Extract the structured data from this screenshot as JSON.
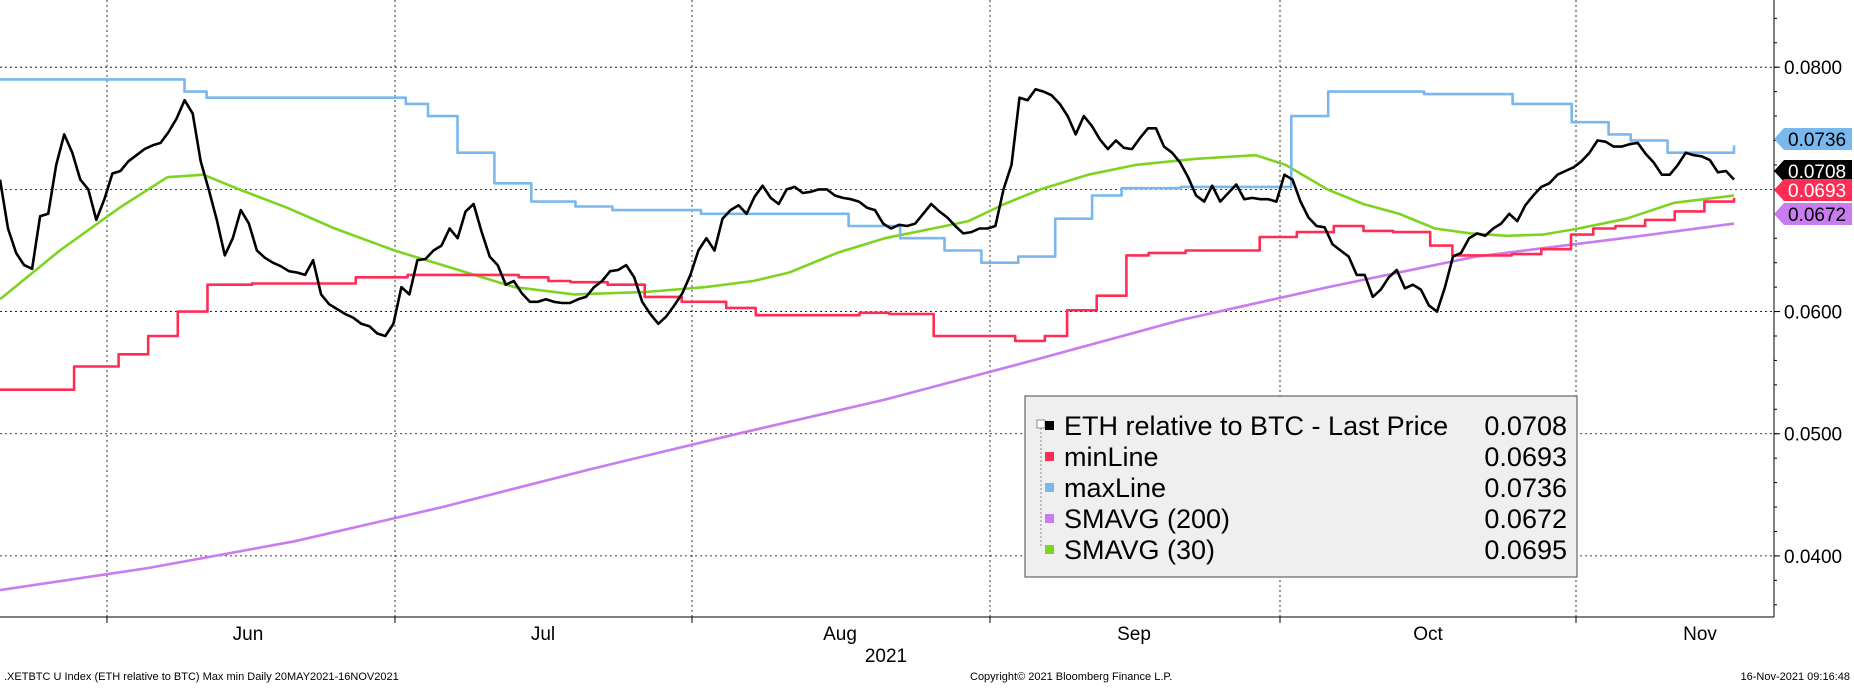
{
  "chart_data": {
    "type": "line",
    "source": "Copyright© 2021 Bloomberg Finance L.P.",
    "footer_left": ".XETBTC U Index (ETH relative to BTC) Max min  Daily 20MAY2021-16NOV2021",
    "footer_right": "16-Nov-2021 09:16:48",
    "x_range": [
      "2021-05-20",
      "2021-11-16"
    ],
    "ylim": [
      0.035,
      0.0855
    ],
    "y_ticks": [
      "0.0800",
      "0.0600",
      "0.0500",
      "0.0400"
    ],
    "x_ticks": [
      "Jun",
      "Jul",
      "Aug",
      "Sep",
      "Oct",
      "Nov"
    ],
    "x_year_label": "2021",
    "grid": true,
    "legend_position": "bottom-right",
    "series": [
      {
        "name": "ETH relative to BTC - Last Price",
        "color": "#000000",
        "last_value": "0.0708",
        "values": [
          0.0708,
          0.0668,
          0.0648,
          0.0638,
          0.0635,
          0.0678,
          0.068,
          0.072,
          0.0745,
          0.073,
          0.0708,
          0.07,
          0.0675,
          0.0692,
          0.0713,
          0.0715,
          0.0723,
          0.0728,
          0.0733,
          0.0736,
          0.0738,
          0.0747,
          0.0758,
          0.0773,
          0.0762,
          0.0723,
          0.07,
          0.0675,
          0.0646,
          0.066,
          0.0683,
          0.0672,
          0.065,
          0.0644,
          0.064,
          0.0637,
          0.0633,
          0.0632,
          0.063,
          0.0642,
          0.0614,
          0.0606,
          0.0602,
          0.0598,
          0.0595,
          0.059,
          0.0588,
          0.0582,
          0.058,
          0.059,
          0.062,
          0.0614,
          0.0642,
          0.0643,
          0.065,
          0.0654,
          0.0668,
          0.066,
          0.0682,
          0.0688,
          0.0665,
          0.0645,
          0.0638,
          0.0622,
          0.0625,
          0.0615,
          0.0608,
          0.0608,
          0.061,
          0.0608,
          0.0607,
          0.0607,
          0.061,
          0.0612,
          0.062,
          0.0625,
          0.0633,
          0.0634,
          0.0638,
          0.0628,
          0.0608,
          0.0598,
          0.059,
          0.0596,
          0.0605,
          0.0615,
          0.063,
          0.065,
          0.066,
          0.065,
          0.0676,
          0.0683,
          0.0687,
          0.068,
          0.0694,
          0.0703,
          0.0693,
          0.0688,
          0.07,
          0.0702,
          0.0697,
          0.0698,
          0.07,
          0.07,
          0.0695,
          0.0693,
          0.0692,
          0.069,
          0.0685,
          0.0683,
          0.0672,
          0.0668,
          0.0671,
          0.067,
          0.0672,
          0.068,
          0.0688,
          0.0682,
          0.0677,
          0.067,
          0.0664,
          0.0665,
          0.0668,
          0.0668,
          0.067,
          0.07,
          0.072,
          0.0775,
          0.0773,
          0.0782,
          0.078,
          0.0777,
          0.077,
          0.076,
          0.0745,
          0.076,
          0.0752,
          0.0741,
          0.0733,
          0.074,
          0.0734,
          0.0733,
          0.0742,
          0.075,
          0.075,
          0.0735,
          0.073,
          0.0722,
          0.071,
          0.0695,
          0.069,
          0.0703,
          0.069,
          0.0697,
          0.0704,
          0.0692,
          0.0693,
          0.0692,
          0.0692,
          0.069,
          0.0712,
          0.0708,
          0.069,
          0.0677,
          0.067,
          0.0669,
          0.0655,
          0.065,
          0.0645,
          0.063,
          0.063,
          0.0612,
          0.0618,
          0.0628,
          0.0634,
          0.0619,
          0.0622,
          0.0618,
          0.0605,
          0.06,
          0.062,
          0.0645,
          0.0648,
          0.066,
          0.0664,
          0.0662,
          0.0668,
          0.0672,
          0.068,
          0.0674,
          0.0687,
          0.0695,
          0.0702,
          0.0705,
          0.0712,
          0.0715,
          0.0718,
          0.0723,
          0.073,
          0.074,
          0.0739,
          0.0735,
          0.0735,
          0.0737,
          0.0738,
          0.0729,
          0.0722,
          0.0712,
          0.0712,
          0.072,
          0.073,
          0.0728,
          0.0727,
          0.0724,
          0.0714,
          0.0715,
          0.0708
        ]
      },
      {
        "name": "minLine",
        "color": "#ff2d55",
        "last_value": "0.0693",
        "points": [
          [
            0,
            0.0536
          ],
          [
            5,
            0.0536
          ],
          [
            10,
            0.0555
          ],
          [
            16,
            0.0565
          ],
          [
            20,
            0.058
          ],
          [
            24,
            0.06
          ],
          [
            28,
            0.0622
          ],
          [
            34,
            0.0623
          ],
          [
            48,
            0.0628
          ],
          [
            55,
            0.063
          ],
          [
            70,
            0.0628
          ],
          [
            74,
            0.0625
          ],
          [
            77,
            0.0624
          ],
          [
            82,
            0.0622
          ],
          [
            87,
            0.0612
          ],
          [
            92,
            0.0608
          ],
          [
            98,
            0.0603
          ],
          [
            102,
            0.0597
          ],
          [
            106,
            0.0597
          ],
          [
            112,
            0.0597
          ],
          [
            116,
            0.0599
          ],
          [
            120,
            0.0598
          ],
          [
            126,
            0.058
          ],
          [
            130,
            0.058
          ],
          [
            137,
            0.0576
          ],
          [
            141,
            0.058
          ],
          [
            144,
            0.0601
          ],
          [
            148,
            0.0613
          ],
          [
            152,
            0.0646
          ],
          [
            155,
            0.0648
          ],
          [
            160,
            0.065
          ],
          [
            170,
            0.0661
          ],
          [
            175,
            0.0665
          ],
          [
            180,
            0.067
          ],
          [
            184,
            0.0666
          ],
          [
            188,
            0.0665
          ],
          [
            193,
            0.0654
          ],
          [
            196,
            0.0646
          ],
          [
            204,
            0.0647
          ],
          [
            208,
            0.0651
          ],
          [
            212,
            0.0663
          ],
          [
            215,
            0.0668
          ],
          [
            218,
            0.067
          ],
          [
            222,
            0.0675
          ],
          [
            226,
            0.0682
          ],
          [
            230,
            0.069
          ],
          [
            234,
            0.0693
          ]
        ]
      },
      {
        "name": "maxLine",
        "color": "#79b8ee",
        "last_value": "0.0736",
        "points": [
          [
            0,
            0.079
          ],
          [
            20,
            0.079
          ],
          [
            25,
            0.078
          ],
          [
            28,
            0.0775
          ],
          [
            55,
            0.077
          ],
          [
            58,
            0.076
          ],
          [
            62,
            0.073
          ],
          [
            67,
            0.0705
          ],
          [
            72,
            0.069
          ],
          [
            78,
            0.0686
          ],
          [
            83,
            0.0683
          ],
          [
            95,
            0.068
          ],
          [
            108,
            0.068
          ],
          [
            115,
            0.067
          ],
          [
            122,
            0.066
          ],
          [
            128,
            0.065
          ],
          [
            133,
            0.064
          ],
          [
            138,
            0.0645
          ],
          [
            143,
            0.0676
          ],
          [
            148,
            0.0695
          ],
          [
            152,
            0.0701
          ],
          [
            160,
            0.0702
          ],
          [
            170,
            0.0702
          ],
          [
            175,
            0.076
          ],
          [
            180,
            0.078
          ],
          [
            193,
            0.0778
          ],
          [
            201,
            0.0778
          ],
          [
            205,
            0.077
          ],
          [
            213,
            0.0755
          ],
          [
            218,
            0.0745
          ],
          [
            221,
            0.074
          ],
          [
            226,
            0.073
          ],
          [
            235,
            0.0736
          ]
        ]
      },
      {
        "name": "SMAVG (200)",
        "color": "#c77cf0",
        "last_value": "0.0672",
        "points": [
          [
            0,
            0.0372
          ],
          [
            20,
            0.039
          ],
          [
            40,
            0.0412
          ],
          [
            60,
            0.044
          ],
          [
            80,
            0.0471
          ],
          [
            100,
            0.05
          ],
          [
            120,
            0.0528
          ],
          [
            140,
            0.056
          ],
          [
            160,
            0.0593
          ],
          [
            180,
            0.062
          ],
          [
            200,
            0.0645
          ],
          [
            220,
            0.066
          ],
          [
            235,
            0.0672
          ]
        ]
      },
      {
        "name": "SMAVG (30)",
        "color": "#7ed321",
        "last_value": "0.0695",
        "points": [
          [
            0,
            0.061
          ],
          [
            10,
            0.065
          ],
          [
            20,
            0.0685
          ],
          [
            28,
            0.071
          ],
          [
            34,
            0.0712
          ],
          [
            40,
            0.07
          ],
          [
            48,
            0.0685
          ],
          [
            56,
            0.0668
          ],
          [
            66,
            0.065
          ],
          [
            76,
            0.0635
          ],
          [
            86,
            0.062
          ],
          [
            96,
            0.0614
          ],
          [
            108,
            0.0616
          ],
          [
            118,
            0.062
          ],
          [
            126,
            0.0625
          ],
          [
            132,
            0.0632
          ],
          [
            140,
            0.0648
          ],
          [
            148,
            0.066
          ],
          [
            156,
            0.0668
          ],
          [
            162,
            0.0674
          ],
          [
            168,
            0.0688
          ],
          [
            174,
            0.07
          ],
          [
            182,
            0.0712
          ],
          [
            190,
            0.072
          ],
          [
            200,
            0.0725
          ],
          [
            210,
            0.0728
          ],
          [
            215,
            0.072
          ],
          [
            222,
            0.07
          ],
          [
            228,
            0.0688
          ],
          [
            234,
            0.068
          ],
          [
            240,
            0.0668
          ],
          [
            246,
            0.0664
          ],
          [
            252,
            0.0662
          ],
          [
            258,
            0.0663
          ],
          [
            264,
            0.0668
          ],
          [
            272,
            0.0676
          ],
          [
            280,
            0.0689
          ],
          [
            290,
            0.0695
          ]
        ]
      }
    ],
    "legend": [
      {
        "label": "ETH relative to BTC - Last Price",
        "value": "0.0708",
        "color": "#000000"
      },
      {
        "label": "minLine",
        "value": "0.0693",
        "color": "#ff2d55"
      },
      {
        "label": "maxLine",
        "value": "0.0736",
        "color": "#79b8ee"
      },
      {
        "label": "SMAVG (200)",
        "value": "0.0672",
        "color": "#c77cf0"
      },
      {
        "label": "SMAVG (30)",
        "value": "0.0695",
        "color": "#7ed321"
      }
    ],
    "value_tags": [
      {
        "value": "0.0736",
        "bg": "#79b8ee",
        "fg": "#000000"
      },
      {
        "value": "0.0708",
        "bg": "#000000",
        "fg": "#ffffff"
      },
      {
        "value": "0.0693",
        "bg": "#ff2d55",
        "fg": "#ffffff"
      },
      {
        "value": "0.0672",
        "bg": "#c77cf0",
        "fg": "#000000"
      }
    ]
  }
}
